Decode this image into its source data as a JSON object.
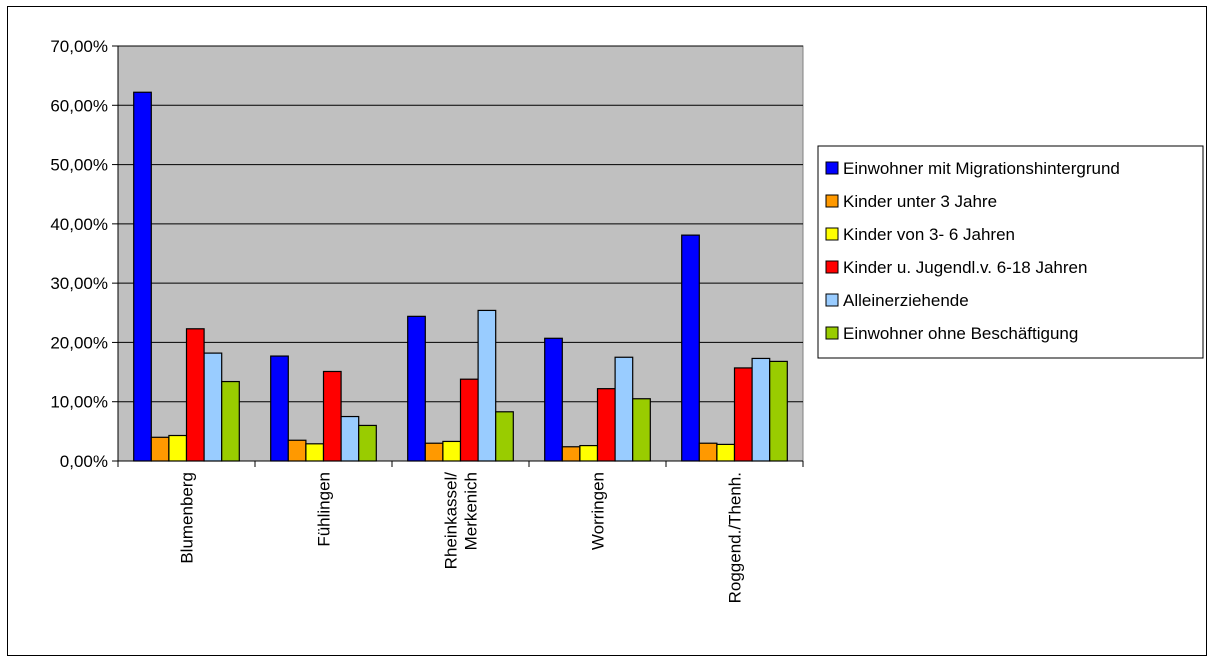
{
  "chart_data": {
    "type": "bar",
    "title": "",
    "xlabel": "",
    "ylabel": "",
    "ylim": [
      0,
      0.7
    ],
    "yticks": [
      0,
      0.1,
      0.2,
      0.3,
      0.4,
      0.5,
      0.6,
      0.7
    ],
    "ytick_labels": [
      "0,00%",
      "10,00%",
      "20,00%",
      "30,00%",
      "40,00%",
      "50,00%",
      "60,00%",
      "70,00%"
    ],
    "grid": true,
    "legend_position": "right",
    "categories": [
      [
        "Blumenberg"
      ],
      [
        "Fühlingen"
      ],
      [
        "Rheinkassel/",
        "Merkenich"
      ],
      [
        "Worringen"
      ],
      [
        "Roggend./Thenh."
      ]
    ],
    "series": [
      {
        "name": "Einwohner mit Migrationshintergrund",
        "color": "#0000ff",
        "values": [
          0.622,
          0.177,
          0.244,
          0.207,
          0.381
        ]
      },
      {
        "name": "Kinder unter 3 Jahre",
        "color": "#ff9900",
        "values": [
          0.04,
          0.035,
          0.03,
          0.024,
          0.03
        ]
      },
      {
        "name": "Kinder von 3- 6 Jahren",
        "color": "#ffff00",
        "values": [
          0.043,
          0.029,
          0.033,
          0.026,
          0.028
        ]
      },
      {
        "name": "Kinder u. Jugendl.v. 6-18 Jahren",
        "color": "#ff0000",
        "values": [
          0.223,
          0.151,
          0.138,
          0.122,
          0.157
        ]
      },
      {
        "name": "Alleinerziehende",
        "color": "#99ccff",
        "values": [
          0.182,
          0.075,
          0.254,
          0.175,
          0.173
        ]
      },
      {
        "name": "Einwohner ohne Beschäftigung",
        "color": "#99cc00",
        "values": [
          0.134,
          0.06,
          0.083,
          0.105,
          0.168
        ]
      }
    ],
    "colors": {
      "plot_background": "#c0c0c0",
      "gridline": "#000000"
    }
  }
}
